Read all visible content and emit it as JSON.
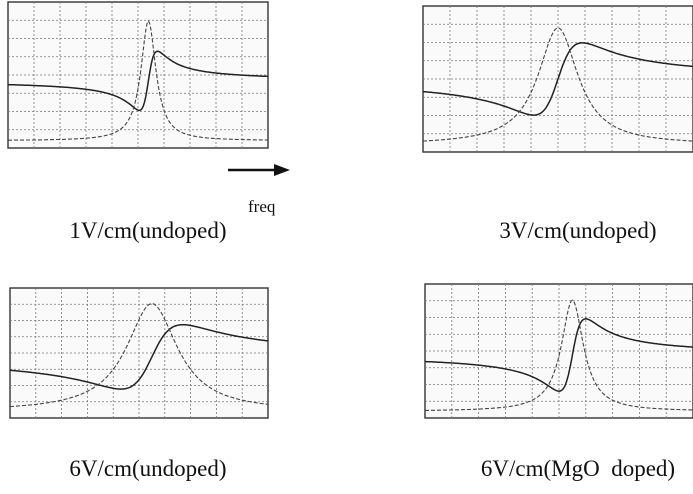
{
  "arrow_label": "freq",
  "panels": [
    {
      "label": "1V/cm(undoped)"
    },
    {
      "label": "3V/cm(undoped)"
    },
    {
      "label": "6V/cm(undoped)"
    },
    {
      "label": "6V/cm(MgO  doped)"
    }
  ]
}
